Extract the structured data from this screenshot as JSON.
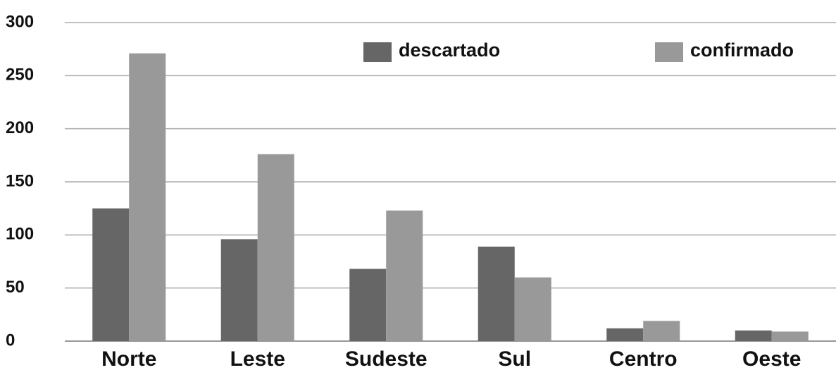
{
  "chart_data": {
    "type": "bar",
    "categories": [
      "Norte",
      "Leste",
      "Sudeste",
      "Sul",
      "Centro",
      "Oeste"
    ],
    "series": [
      {
        "name": "descartado",
        "color": "#666666",
        "values": [
          125,
          96,
          68,
          89,
          12,
          10
        ]
      },
      {
        "name": "confirmado",
        "color": "#999999",
        "values": [
          271,
          176,
          123,
          60,
          19,
          9
        ]
      }
    ],
    "ylim": [
      0,
      300
    ],
    "yticks": [
      0,
      50,
      100,
      150,
      200,
      250,
      300
    ],
    "grid": true
  }
}
